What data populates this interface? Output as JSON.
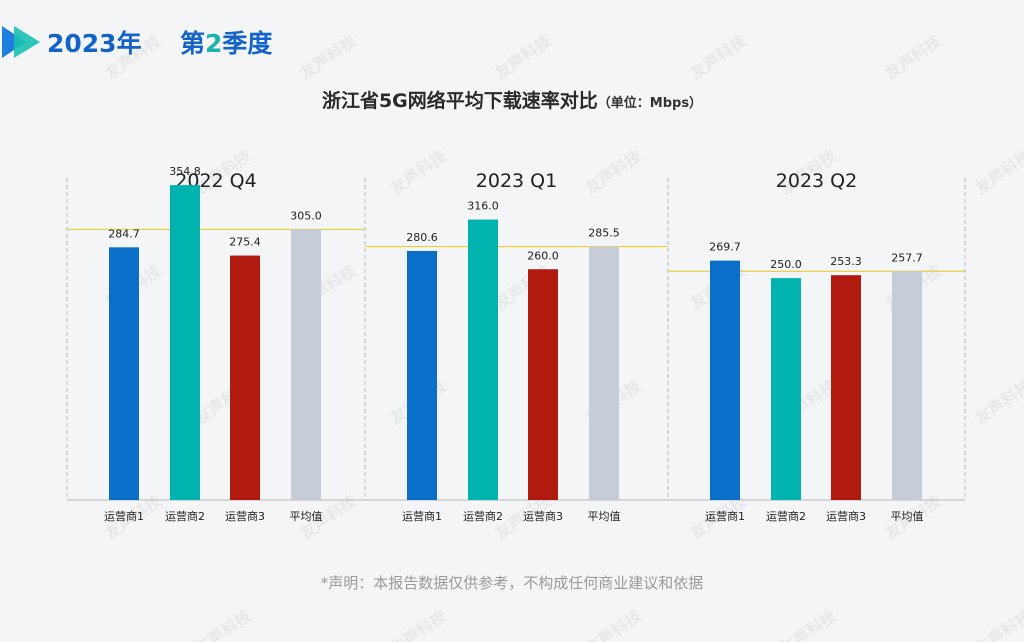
{
  "header": {
    "year_label": "2023年",
    "quarter_prefix": "第",
    "quarter_number": "2",
    "quarter_suffix": "季度"
  },
  "watermark_text": "友声科技",
  "footnote": "*声明：本报告数据仅供参考，不构成任何商业建议和依据",
  "colors": {
    "brand_blue": "#1463c8",
    "brand_teal": "#15b5ae",
    "operator1": "#0a6fc8",
    "operator2": "#00b3ae",
    "operator3": "#b01a0f",
    "average": "#c6cdd8",
    "avg_line": "#e8c81a",
    "panel_border": "#b8b8b8"
  },
  "chart_data": {
    "type": "bar",
    "title": "浙江省5G网络平均下载速率对比",
    "unit_label": "（单位：Mbps）",
    "ylim": [
      0,
      400
    ],
    "categories": [
      "运营商1",
      "运营商2",
      "运营商3",
      "平均值"
    ],
    "panels": [
      {
        "title": "2022 Q4",
        "values": [
          284.7,
          354.8,
          275.4,
          305.0
        ],
        "labels": [
          "284.7",
          "354.8",
          "275.4",
          "305.0"
        ]
      },
      {
        "title": "2023 Q1",
        "values": [
          280.6,
          316.0,
          260.0,
          285.5
        ],
        "labels": [
          "280.6",
          "316.0",
          "260.0",
          "285.5"
        ]
      },
      {
        "title": "2023 Q2",
        "values": [
          269.7,
          250.0,
          253.3,
          257.7
        ],
        "labels": [
          "269.7",
          "250.0",
          "253.3",
          "257.7"
        ]
      }
    ],
    "reference_line": "average",
    "grid": false,
    "legend": "none"
  }
}
